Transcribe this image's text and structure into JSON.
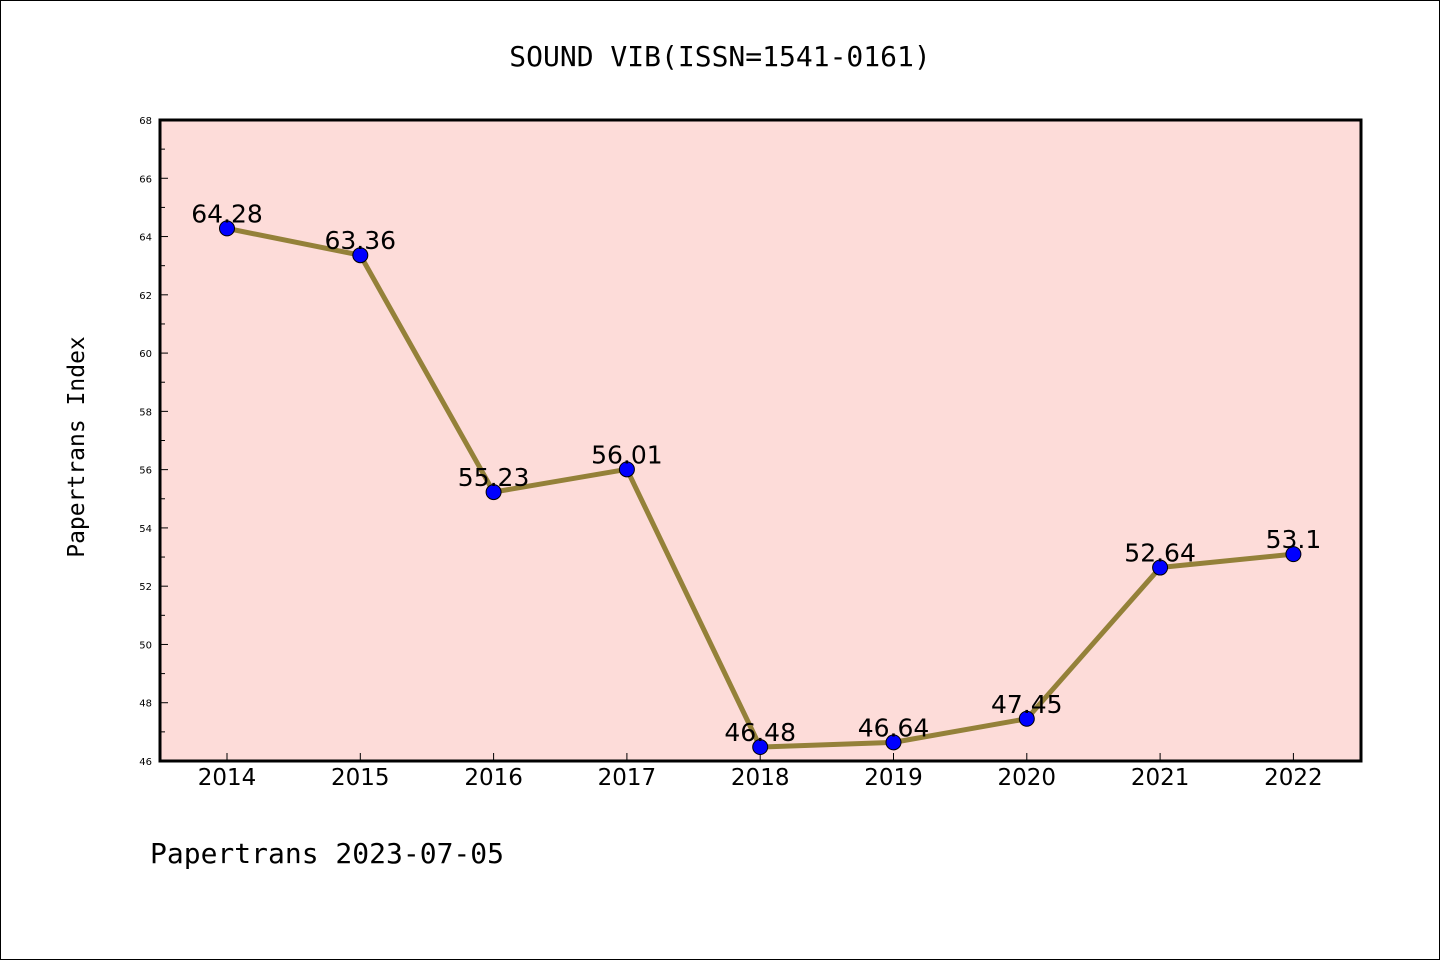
{
  "chart_data": {
    "type": "line",
    "title": "SOUND VIB(ISSN=1541-0161)",
    "xlabel": "",
    "ylabel": "Papertrans Index",
    "categories": [
      "2014",
      "2015",
      "2016",
      "2017",
      "2018",
      "2019",
      "2020",
      "2021",
      "2022"
    ],
    "series": [
      {
        "values": [
          64.28,
          63.36,
          55.23,
          56.01,
          46.48,
          46.64,
          47.45,
          52.64,
          53.1
        ],
        "labels": [
          "64.28",
          "63.36",
          "55.23",
          "56.01",
          "46.48",
          "46.64",
          "47.45",
          "52.64",
          "53.1"
        ]
      }
    ],
    "ylim": [
      46,
      68
    ],
    "yticks": [
      "46",
      "48",
      "50",
      "52",
      "54",
      "56",
      "58",
      "60",
      "62",
      "64",
      "66",
      "68"
    ],
    "grid": false,
    "colors": {
      "plot_background": "#fddcd9",
      "line": "#948139",
      "marker": "#0000ff"
    }
  },
  "footer": "Papertrans 2023-07-05"
}
